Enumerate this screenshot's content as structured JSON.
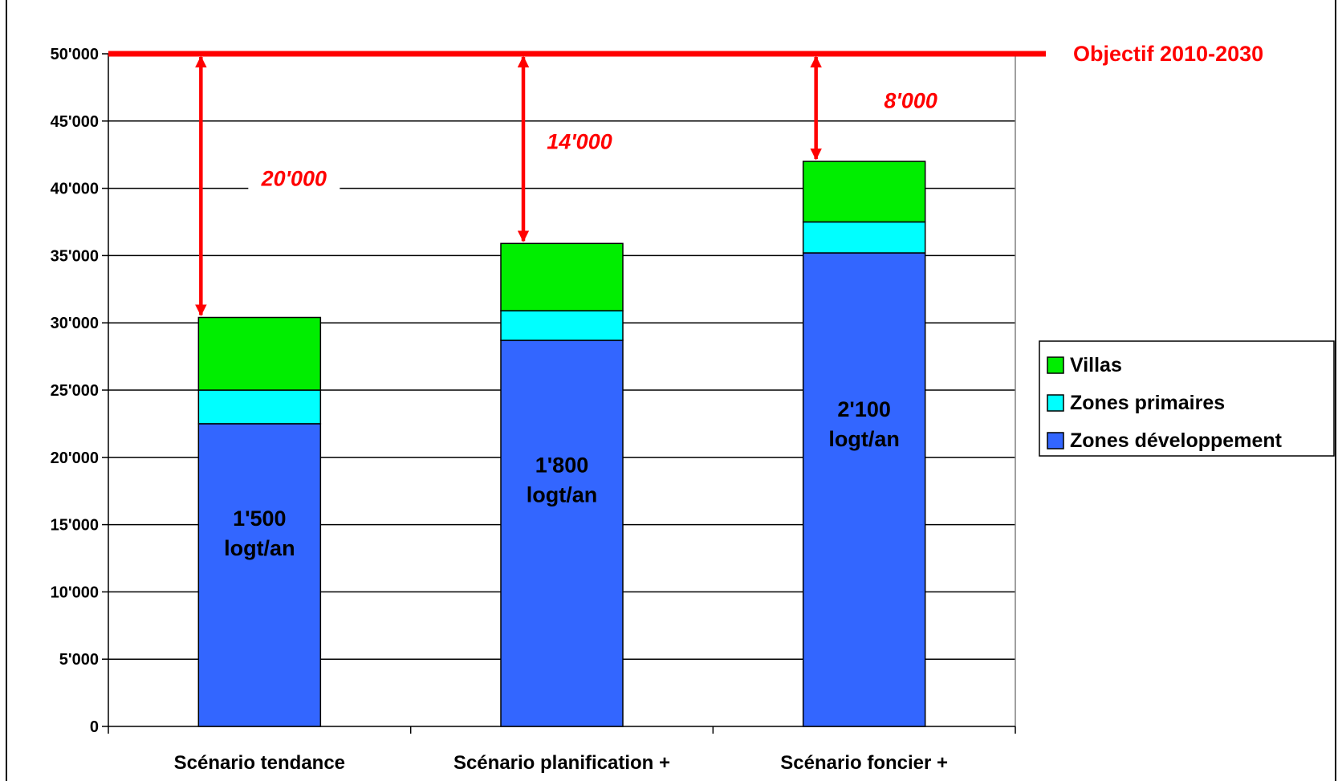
{
  "chart_data": {
    "type": "bar",
    "stacked": true,
    "categories": [
      "Scénario tendance",
      "Scénario planification +",
      "Scénario foncier +"
    ],
    "series": [
      {
        "name": "Zones développement",
        "values": [
          22500,
          28700,
          35200
        ],
        "color": "#3366ff"
      },
      {
        "name": "Zones primaires",
        "values": [
          2500,
          2200,
          2300
        ],
        "color": "#00ffff"
      },
      {
        "name": "Villas",
        "values": [
          5400,
          5000,
          4500
        ],
        "color": "#00ee00"
      }
    ],
    "bar_labels": [
      [
        "1'500",
        "logt/an"
      ],
      [
        "1'800",
        "logt/an"
      ],
      [
        "2'100",
        "logt/an"
      ]
    ],
    "gap_labels": [
      "20'000",
      "14'000",
      "8'000"
    ],
    "target": {
      "value": 50000,
      "label": "Objectif 2010-2030",
      "color": "#ff0000"
    },
    "ylim": [
      0,
      50000
    ],
    "yticks": [
      0,
      5000,
      10000,
      15000,
      20000,
      25000,
      30000,
      35000,
      40000,
      45000,
      50000
    ],
    "ytick_labels": [
      "0",
      "5'000",
      "10'000",
      "15'000",
      "20'000",
      "25'000",
      "30'000",
      "35'000",
      "40'000",
      "45'000",
      "50'000"
    ],
    "grid": true,
    "legend_position": "right",
    "legend_order": [
      "Villas",
      "Zones primaires",
      "Zones développement"
    ],
    "title": "",
    "xlabel": "",
    "ylabel": ""
  }
}
